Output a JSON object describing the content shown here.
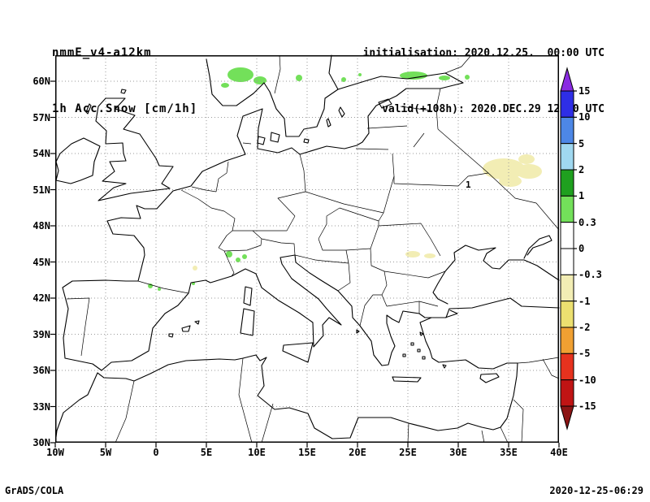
{
  "header": {
    "model": "nmmE_v4-a12km",
    "field": "1h Acc.Snow [cm/1h]",
    "init": "initialisation: 2020.12.25.  00:00 UTC",
    "valid": "valid(+108h): 2020.DEC.29 12:00 UTC"
  },
  "footer": {
    "left": "GrADS/COLA",
    "right": "2020-12-25-06:29"
  },
  "map": {
    "lat_ticks": [
      "60N",
      "57N",
      "54N",
      "51N",
      "48N",
      "45N",
      "42N",
      "39N",
      "36N",
      "33N",
      "30N"
    ],
    "lon_ticks": [
      "10W",
      "5W",
      "0",
      "5E",
      "10E",
      "15E",
      "20E",
      "25E",
      "30E",
      "35E",
      "40E"
    ],
    "contour_label": "1"
  },
  "colorbar": {
    "labels": [
      "15",
      "10",
      "5",
      "2",
      "1",
      "0.3",
      "0",
      "-0.3",
      "-1",
      "-2",
      "-5",
      "-10",
      "-15"
    ],
    "colors": [
      "#8a2be2",
      "#2e2ee6",
      "#4d87e6",
      "#a0d8f0",
      "#1fa01f",
      "#73e05a",
      "#ffffff",
      "#ffffff",
      "#f2edb4",
      "#ece070",
      "#f0a032",
      "#e6321e",
      "#c01414",
      "#8c1414"
    ]
  },
  "chart_data": {
    "type": "heatmap",
    "title": "1h Acc.Snow [cm/1h]",
    "region": "Europe, 30N-62N, 10W-40E",
    "units": "cm/1h",
    "scale_levels": [
      15,
      10,
      5,
      2,
      1,
      0.3,
      0,
      -0.3,
      -1,
      -2,
      -5,
      -10,
      -15
    ],
    "grid": "dotted, 3 deg lat x 5 deg lon",
    "legend_position": "right vertical colorbar with end triangles",
    "observations": [
      {
        "area": "southern Norway (59-61N, 6-11E)",
        "value_range": "0.3 to 1"
      },
      {
        "area": "Gulf of Finland coasts (60N, 24-33E)",
        "value_range": "0.3 to 1"
      },
      {
        "area": "Alps (45-46.5N, 6-8E)",
        "value_range": "0.3 to 1"
      },
      {
        "area": "NE Spain / Pyrenees (42-43N, 2W-2E)",
        "value_range": "0.3 to 1"
      },
      {
        "area": "western Russia / E Belarus (52-54N, 32-37E)",
        "value_range": "-1 to -0.3"
      },
      {
        "area": "Romania (45-46N, 25-28E)",
        "value_range": "-1 to -0.3"
      }
    ]
  }
}
